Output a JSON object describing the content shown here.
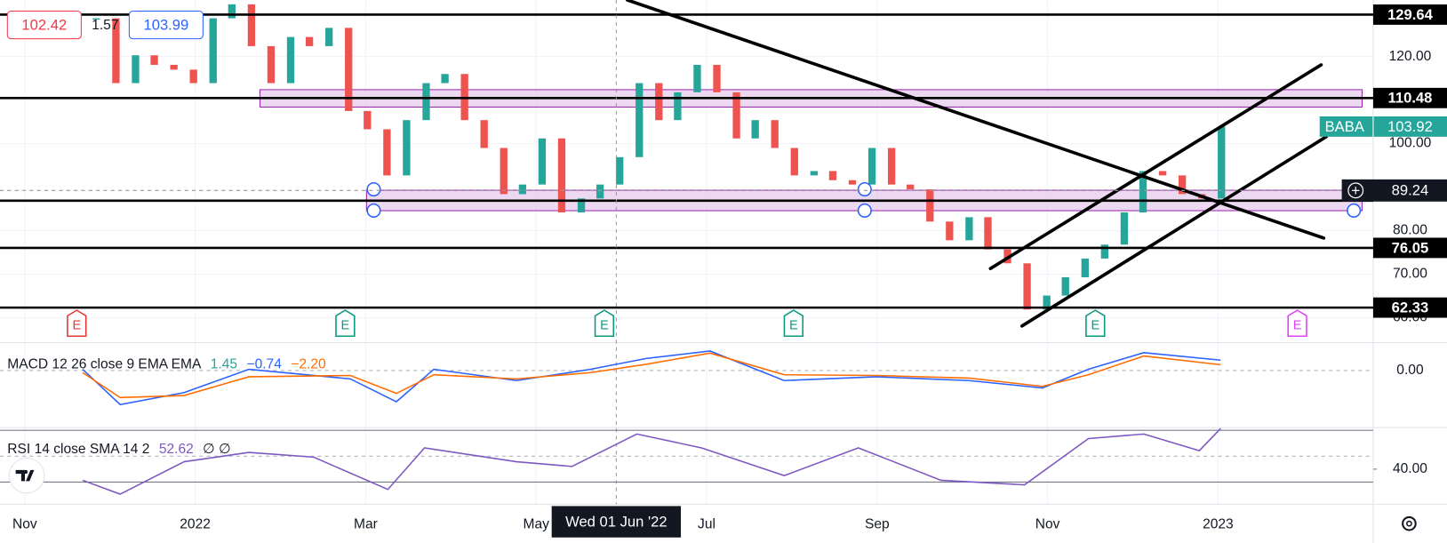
{
  "quote": {
    "sell": 102.42,
    "spread": 1.57,
    "buy": 103.99
  },
  "chart_data": [
    {
      "type": "candlestick",
      "symbol": "BABA",
      "last": 103.92,
      "up_color": "#26a69a",
      "down_color": "#ef5350",
      "xlim": [
        -0.29,
        15.82
      ],
      "xticks": [
        {
          "value": 0,
          "label": "Nov"
        },
        {
          "value": 2,
          "label": "2022"
        },
        {
          "value": 4,
          "label": "Mar"
        },
        {
          "value": 6,
          "label": "May"
        },
        {
          "value": 8,
          "label": "Jul"
        },
        {
          "value": 10,
          "label": "Sep"
        },
        {
          "value": 12,
          "label": "Nov"
        },
        {
          "value": 14,
          "label": "2023"
        }
      ],
      "ylim": [
        54.5,
        133
      ],
      "yticks": [
        {
          "value": 120,
          "label": "120.00"
        },
        {
          "value": 100,
          "label": "100.00"
        },
        {
          "value": 80,
          "label": "80.00"
        },
        {
          "value": 70,
          "label": "70.00"
        },
        {
          "value": 60,
          "label": "60.00"
        }
      ],
      "x": [
        0.84,
        1.07,
        1.3,
        1.52,
        1.75,
        1.98,
        2.21,
        2.43,
        2.66,
        2.89,
        3.12,
        3.34,
        3.57,
        3.8,
        4.02,
        4.25,
        4.48,
        4.71,
        4.93,
        5.16,
        5.39,
        5.62,
        5.84,
        6.07,
        6.3,
        6.53,
        6.75,
        6.98,
        7.21,
        7.44,
        7.66,
        7.89,
        8.12,
        8.35,
        8.57,
        8.8,
        9.03,
        9.26,
        9.48,
        9.71,
        9.94,
        10.17,
        10.39,
        10.62,
        10.85,
        11.08,
        11.3,
        11.53,
        11.76,
        11.99,
        12.21,
        12.44,
        12.67,
        12.9,
        13.12,
        13.35,
        13.58,
        13.81,
        14.04
      ],
      "close": [
        128.8,
        113.9,
        120.3,
        118.1,
        117,
        113.9,
        128.8,
        132,
        122.4,
        113.9,
        124.5,
        122.4,
        126.6,
        107.5,
        103.3,
        92.7,
        105.4,
        113.9,
        116,
        105.4,
        99,
        88.4,
        90.6,
        101.2,
        84.2,
        87.4,
        90.6,
        96.9,
        113.9,
        105.4,
        111.8,
        118.1,
        111.8,
        101.2,
        105.4,
        99,
        92.7,
        93.7,
        91.6,
        90.6,
        99,
        90.6,
        89.5,
        82.1,
        77.8,
        83.1,
        75.7,
        72.5,
        61.9,
        65.1,
        69.3,
        73.6,
        76.8,
        84.2,
        93.7,
        92.7,
        88.4,
        87.4,
        103.9
      ],
      "levels": [
        129.64,
        110.48,
        76.05,
        62.33
      ],
      "extra_levels": [
        86.9
      ],
      "zones": [
        {
          "x0": 2.76,
          "x1": 15.69,
          "top": 112.4,
          "bottom": 108.4
        },
        {
          "x0": 4.01,
          "x1": 15.69,
          "top": 89.3,
          "bottom": 84.6
        }
      ],
      "trendlines": [
        [
          [
            7.07,
            133
          ],
          [
            15.24,
            78.3
          ]
        ],
        [
          [
            11.33,
            71.3
          ],
          [
            15.21,
            118.1
          ]
        ],
        [
          [
            11.7,
            58.1
          ],
          [
            15.27,
            101.6
          ]
        ]
      ],
      "events": [
        {
          "label": "E",
          "x": 0.61,
          "color": "#e53935"
        },
        {
          "label": "E",
          "x": 3.76,
          "color": "#089981"
        },
        {
          "label": "E",
          "x": 6.8,
          "color": "#089981"
        },
        {
          "label": "E",
          "x": 9.02,
          "color": "#089981"
        },
        {
          "label": "E",
          "x": 12.56,
          "color": "#089981"
        },
        {
          "label": "E",
          "x": 14.93,
          "color": "#e040fb"
        }
      ],
      "crosshair": {
        "x": {
          "value": 6.94,
          "label": "Wed 01 Jun '22"
        },
        "y": 89.24
      }
    },
    {
      "type": "line",
      "title": "MACD 12 26 close 9 EMA EMA",
      "legend_values": [
        1.45,
        -0.74,
        -2.2
      ],
      "value_labels": [
        "1.45",
        "−0.74",
        "−2.20"
      ],
      "legend_colors": [
        "#26a69a",
        "#2962ff",
        "#ff6d00"
      ],
      "ylim": [
        -13.5,
        6.5
      ],
      "yticks": [
        {
          "value": 0,
          "label": "0.00"
        }
      ],
      "series": [
        {
          "color": "#2962ff",
          "x": [
            0.68,
            1.12,
            1.87,
            2.63,
            3.82,
            4.36,
            4.8,
            5.77,
            6.64,
            7.29,
            8.04,
            8.91,
            9.99,
            11.08,
            11.94,
            12.48,
            13.13,
            14.03
          ],
          "values": [
            0.3,
            -8.2,
            -5.3,
            0.3,
            -2.0,
            -7.5,
            0.3,
            -2.4,
            0.3,
            2.9,
            4.7,
            -2.4,
            -1.5,
            -2.4,
            -4.2,
            0.3,
            4.3,
            2.5
          ]
        },
        {
          "color": "#ff6d00",
          "x": [
            0.68,
            1.12,
            1.87,
            2.63,
            3.82,
            4.36,
            4.8,
            5.77,
            6.64,
            7.29,
            8.04,
            8.91,
            9.99,
            11.08,
            11.94,
            12.48,
            13.13,
            14.03
          ],
          "values": [
            -0.5,
            -6.5,
            -6.0,
            -1.5,
            -1.2,
            -5.5,
            -1.0,
            -2.0,
            -0.5,
            1.5,
            4.2,
            -1.0,
            -1.2,
            -1.8,
            -3.8,
            -1.0,
            3.5,
            1.4
          ]
        }
      ]
    },
    {
      "type": "line",
      "title": "RSI 14 close SMA 14 2",
      "legend_values": [
        52.62
      ],
      "legend_text": "∅ ∅",
      "legend_colors": [
        "#7e57c2"
      ],
      "ylim": [
        13.6,
        71.4
      ],
      "yticks": [
        {
          "value": 40,
          "label": "40.00"
        }
      ],
      "bands": [
        30,
        70
      ],
      "midline": 50,
      "series": [
        {
          "color": "#7e57c2",
          "x": [
            0.68,
            1.12,
            1.87,
            2.63,
            3.39,
            4.26,
            4.69,
            5.77,
            6.42,
            7.18,
            7.94,
            8.91,
            9.78,
            10.75,
            11.73,
            12.48,
            13.13,
            13.78,
            14.03
          ],
          "values": [
            31.4,
            20.7,
            45.7,
            52.9,
            49.3,
            24.3,
            56.4,
            45.7,
            42.1,
            67.1,
            56.4,
            35,
            56.4,
            31.4,
            27.9,
            63.6,
            67.1,
            54.3,
            71.4
          ]
        }
      ]
    }
  ]
}
